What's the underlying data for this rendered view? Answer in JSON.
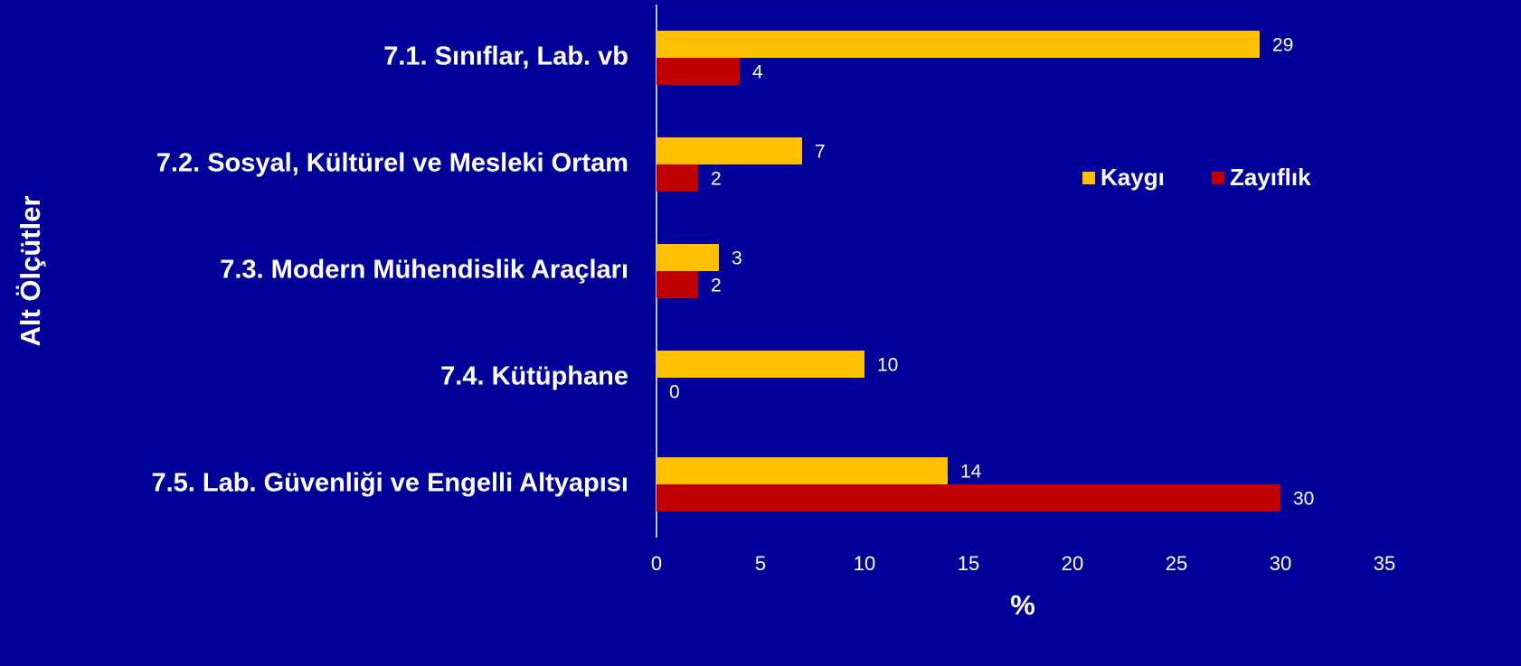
{
  "chart_data": {
    "type": "barh",
    "categories": [
      "7.1. Sınıflar, Lab. vb",
      "7.2. Sosyal, Kültürel ve Mesleki Ortam",
      "7.3. Modern Mühendislik Araçları",
      "7.4. Kütüphane",
      "7.5. Lab. Güvenliği ve Engelli Altyapısı"
    ],
    "series": [
      {
        "name": "Kaygı",
        "color": "#ffc000",
        "values": [
          29,
          7,
          3,
          10,
          14
        ]
      },
      {
        "name": "Zayıflık",
        "color": "#c00000",
        "values": [
          4,
          2,
          2,
          0,
          30
        ]
      }
    ],
    "x_label": "%",
    "y_label": "Alt Ölçütler",
    "xlim": [
      0,
      35
    ],
    "xticks": [
      0,
      5,
      10,
      15,
      20,
      25,
      30,
      35
    ],
    "grid": false,
    "legend_position": "right"
  }
}
